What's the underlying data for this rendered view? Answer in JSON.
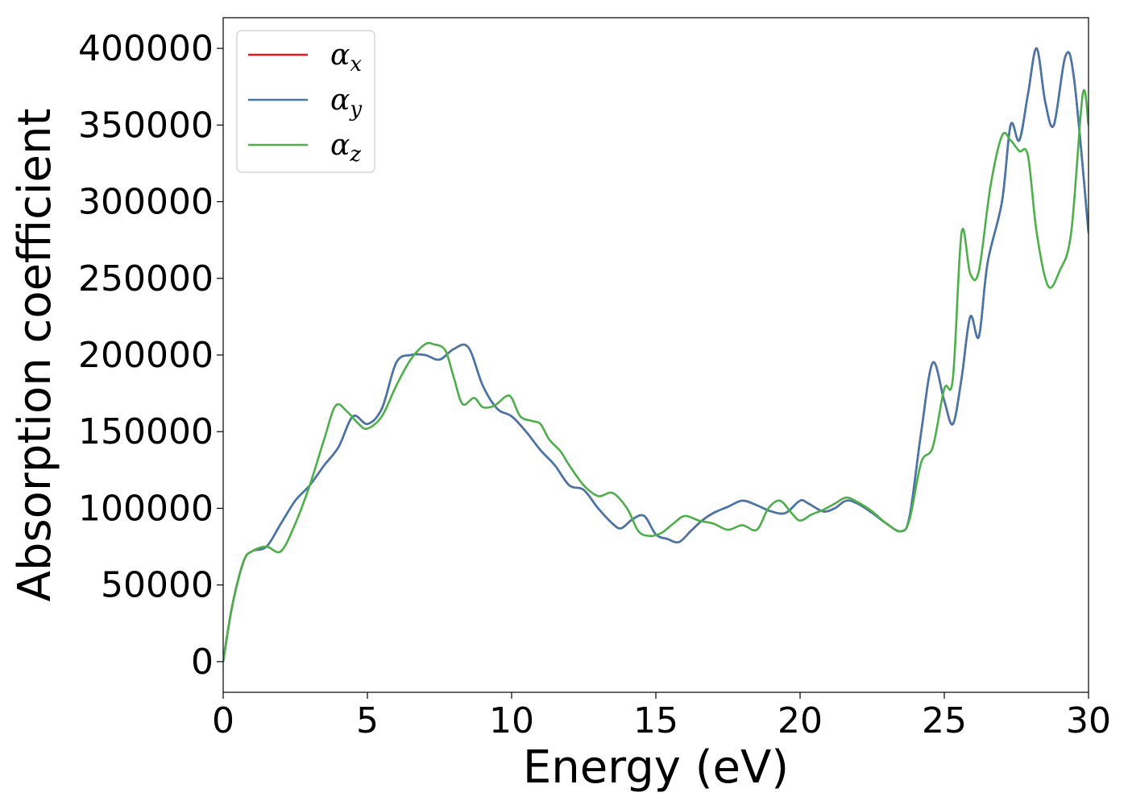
{
  "chart_data": {
    "type": "line",
    "xlabel": "Energy (eV)",
    "ylabel": "Absorption coefficient",
    "xlim": [
      0,
      30
    ],
    "ylim": [
      -20000,
      420000
    ],
    "xticks": [
      0,
      5,
      10,
      15,
      20,
      25,
      30
    ],
    "xtick_labels": [
      "0",
      "5",
      "10",
      "15",
      "20",
      "25",
      "30"
    ],
    "yticks": [
      0,
      50000,
      100000,
      150000,
      200000,
      250000,
      300000,
      350000,
      400000
    ],
    "ytick_labels": [
      "0",
      "50000",
      "100000",
      "150000",
      "200000",
      "250000",
      "300000",
      "350000",
      "400000"
    ],
    "grid": false,
    "legend_position": "top-left",
    "series": [
      {
        "name": "α",
        "subscript": "x",
        "color": "#e41a1c",
        "x": [
          0,
          0.3,
          0.7,
          1.0,
          1.5,
          2.0,
          2.5,
          3.0,
          3.5,
          4.0,
          4.5,
          5.0,
          5.5,
          6.0,
          6.5,
          7.0,
          7.5,
          8.0,
          8.5,
          9.0,
          9.5,
          10.0,
          10.5,
          11.0,
          11.5,
          12.0,
          12.5,
          13.0,
          13.5,
          13.8,
          14.2,
          14.6,
          15.0,
          15.4,
          15.8,
          16.2,
          16.6,
          17.0,
          17.5,
          18.0,
          18.5,
          19.0,
          19.5,
          20.0,
          20.3,
          20.8,
          21.2,
          21.6,
          22.0,
          22.5,
          23.0,
          23.5,
          23.8,
          24.2,
          24.6,
          25.0,
          25.3,
          25.6,
          25.9,
          26.2,
          26.5,
          27.0,
          27.3,
          27.6,
          27.9,
          28.2,
          28.5,
          28.8,
          29.2,
          29.5,
          30.0
        ],
        "values": [
          0,
          35000,
          65000,
          72000,
          75000,
          90000,
          105000,
          115000,
          128000,
          140000,
          160000,
          155000,
          165000,
          195000,
          200000,
          200000,
          197000,
          204000,
          205000,
          180000,
          165000,
          160000,
          150000,
          138000,
          128000,
          115000,
          112000,
          100000,
          90000,
          87000,
          93000,
          95000,
          83000,
          80000,
          78000,
          85000,
          92000,
          97000,
          101000,
          105000,
          102000,
          98000,
          97000,
          105000,
          103000,
          98000,
          100000,
          105000,
          103000,
          97000,
          90000,
          85000,
          95000,
          150000,
          195000,
          170000,
          155000,
          185000,
          225000,
          212000,
          260000,
          300000,
          350000,
          340000,
          370000,
          400000,
          365000,
          350000,
          395000,
          380000,
          280000
        ]
      },
      {
        "name": "α",
        "subscript": "y",
        "color": "#4477aa",
        "x": [
          0,
          0.3,
          0.7,
          1.0,
          1.5,
          2.0,
          2.5,
          3.0,
          3.5,
          4.0,
          4.5,
          5.0,
          5.5,
          6.0,
          6.5,
          7.0,
          7.5,
          8.0,
          8.5,
          9.0,
          9.5,
          10.0,
          10.5,
          11.0,
          11.5,
          12.0,
          12.5,
          13.0,
          13.5,
          13.8,
          14.2,
          14.6,
          15.0,
          15.4,
          15.8,
          16.2,
          16.6,
          17.0,
          17.5,
          18.0,
          18.5,
          19.0,
          19.5,
          20.0,
          20.3,
          20.8,
          21.2,
          21.6,
          22.0,
          22.5,
          23.0,
          23.5,
          23.8,
          24.2,
          24.6,
          25.0,
          25.3,
          25.6,
          25.9,
          26.2,
          26.5,
          27.0,
          27.3,
          27.6,
          27.9,
          28.2,
          28.5,
          28.8,
          29.2,
          29.5,
          30.0
        ],
        "values": [
          0,
          35000,
          65000,
          72000,
          75000,
          90000,
          105000,
          115000,
          128000,
          140000,
          160000,
          155000,
          165000,
          195000,
          200000,
          200000,
          197000,
          204000,
          205000,
          180000,
          165000,
          160000,
          150000,
          138000,
          128000,
          115000,
          112000,
          100000,
          90000,
          87000,
          93000,
          95000,
          83000,
          80000,
          78000,
          85000,
          92000,
          97000,
          101000,
          105000,
          102000,
          98000,
          97000,
          105000,
          103000,
          98000,
          100000,
          105000,
          103000,
          97000,
          90000,
          85000,
          95000,
          150000,
          195000,
          170000,
          155000,
          185000,
          225000,
          212000,
          260000,
          300000,
          350000,
          340000,
          370000,
          400000,
          365000,
          350000,
          395000,
          380000,
          280000
        ]
      },
      {
        "name": "α",
        "subscript": "z",
        "color": "#4daf4a",
        "x": [
          0,
          0.3,
          0.7,
          1.0,
          1.5,
          2.0,
          2.5,
          3.0,
          3.5,
          3.9,
          4.3,
          4.7,
          5.0,
          5.5,
          6.0,
          6.5,
          7.0,
          7.3,
          7.7,
          8.0,
          8.3,
          8.7,
          9.0,
          9.4,
          9.8,
          10.0,
          10.3,
          10.7,
          11.0,
          11.3,
          11.7,
          12.0,
          12.5,
          13.0,
          13.5,
          14.0,
          14.4,
          14.8,
          15.2,
          15.6,
          16.0,
          16.5,
          17.0,
          17.5,
          18.0,
          18.5,
          18.9,
          19.3,
          19.7,
          20.0,
          20.4,
          20.8,
          21.2,
          21.6,
          22.0,
          22.5,
          23.0,
          23.5,
          23.8,
          24.2,
          24.6,
          25.0,
          25.3,
          25.6,
          25.9,
          26.2,
          26.6,
          27.0,
          27.3,
          27.6,
          27.9,
          28.2,
          28.6,
          29.0,
          29.4,
          29.8,
          30.0
        ],
        "values": [
          0,
          35000,
          65000,
          72000,
          75000,
          72000,
          90000,
          115000,
          145000,
          167000,
          163000,
          155000,
          152000,
          160000,
          180000,
          197000,
          207000,
          207000,
          203000,
          185000,
          168000,
          172000,
          166000,
          167000,
          173000,
          172000,
          160000,
          157000,
          155000,
          145000,
          137000,
          128000,
          115000,
          108000,
          110000,
          100000,
          85000,
          82000,
          84000,
          90000,
          95000,
          92000,
          90000,
          86000,
          89000,
          86000,
          100000,
          105000,
          97000,
          92000,
          96000,
          99000,
          103000,
          107000,
          104000,
          98000,
          90000,
          85000,
          93000,
          130000,
          140000,
          178000,
          185000,
          280000,
          253000,
          255000,
          310000,
          343000,
          340000,
          333000,
          330000,
          280000,
          245000,
          255000,
          280000,
          370000,
          350000
        ]
      }
    ]
  }
}
